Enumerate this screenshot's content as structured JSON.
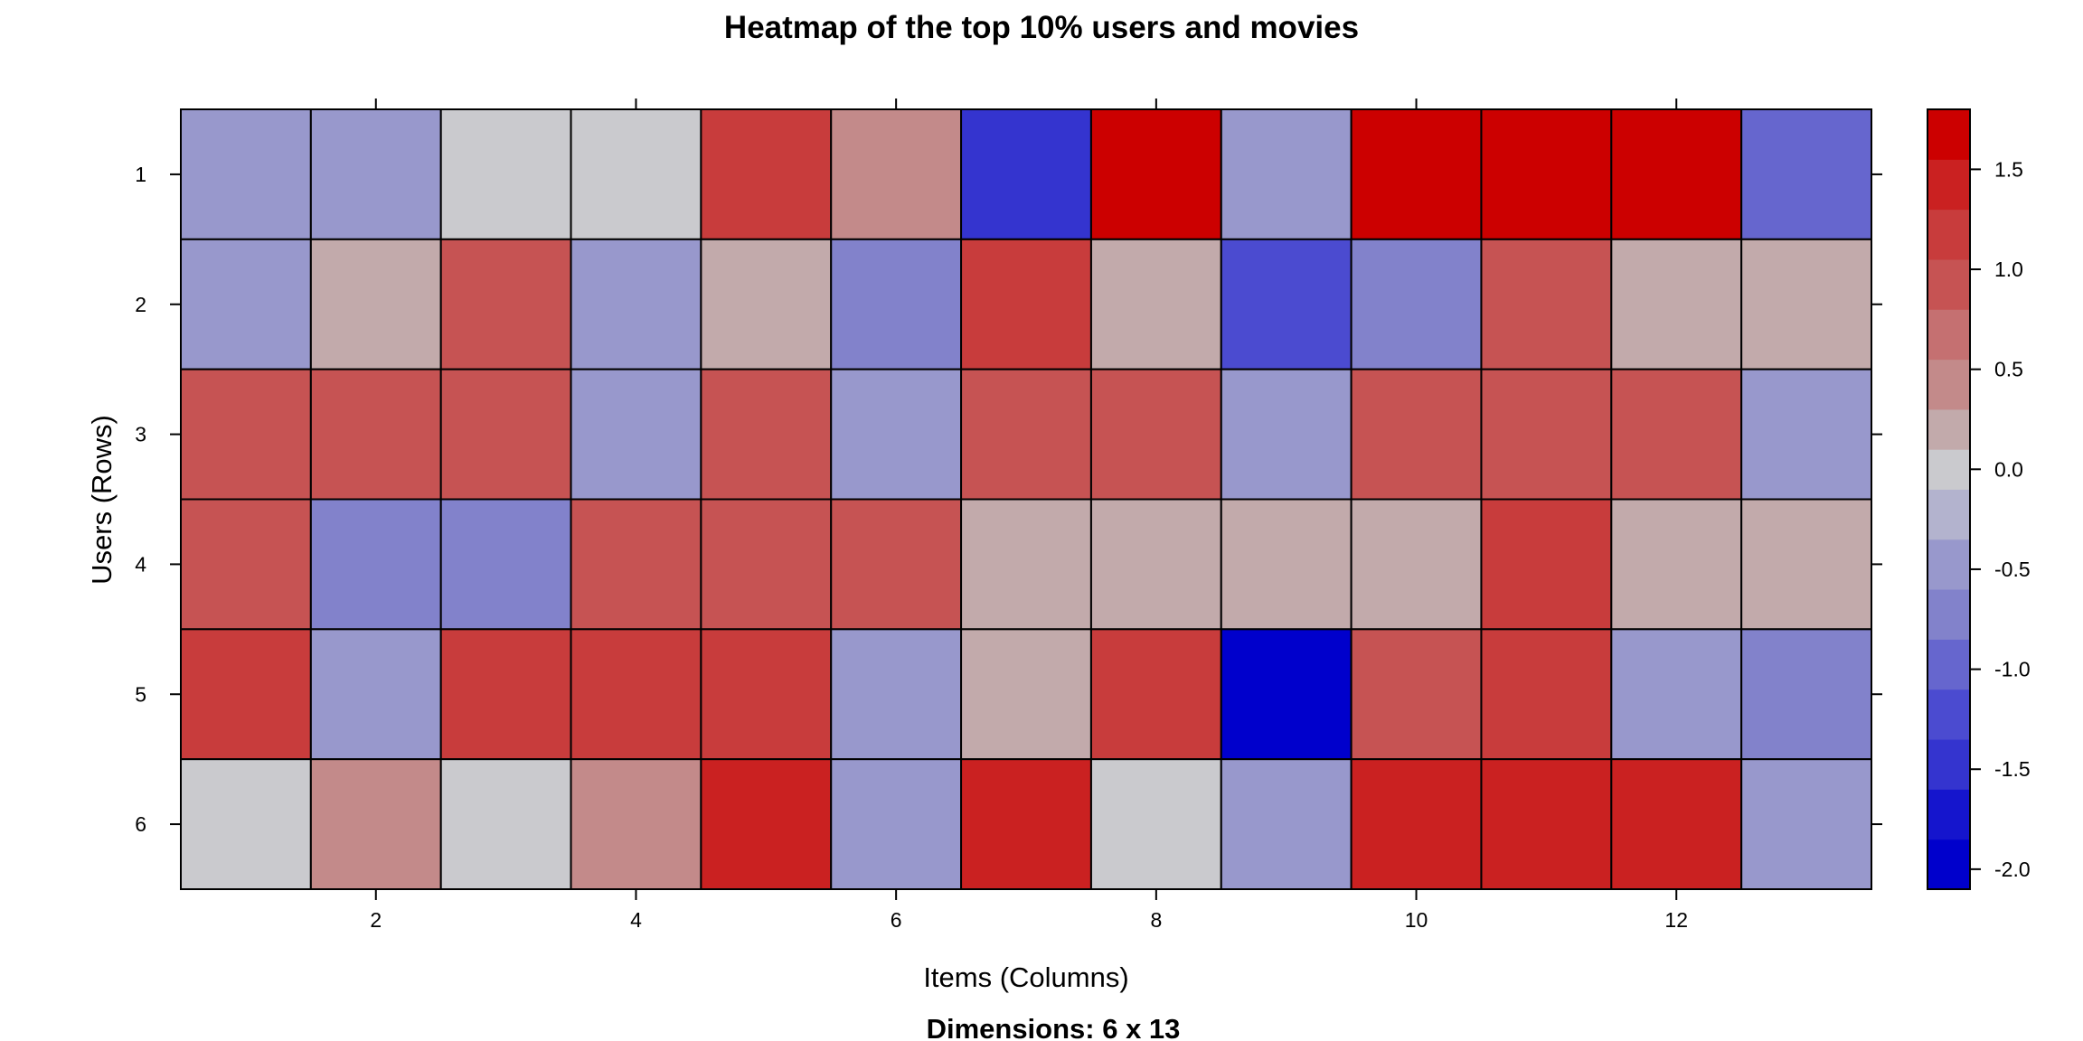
{
  "chart_data": {
    "type": "heatmap",
    "title": "Heatmap of the top 10% users and movies",
    "subtitle": "Dimensions: 6 x 13",
    "xlabel": "Items (Columns)",
    "ylabel": "Users (Rows)",
    "rows": [
      1,
      2,
      3,
      4,
      5,
      6
    ],
    "columns": [
      1,
      2,
      3,
      4,
      5,
      6,
      7,
      8,
      9,
      10,
      11,
      12,
      13
    ],
    "x_ticks": [
      "2",
      "4",
      "6",
      "8",
      "10",
      "12"
    ],
    "y_ticks": [
      "1",
      "2",
      "3",
      "4",
      "5",
      "6"
    ],
    "values": [
      [
        -0.6,
        -0.6,
        0.0,
        0.0,
        1.1,
        0.4,
        -1.6,
        1.7,
        -0.6,
        1.7,
        1.7,
        1.7,
        -1.1
      ],
      [
        -0.4,
        0.2,
        0.8,
        -0.4,
        0.2,
        -0.8,
        1.2,
        0.2,
        -1.3,
        -0.8,
        0.8,
        0.2,
        0.2
      ],
      [
        0.8,
        0.8,
        0.8,
        -0.4,
        0.8,
        -0.4,
        0.8,
        0.8,
        -0.4,
        0.8,
        0.8,
        0.8,
        -0.4
      ],
      [
        0.8,
        -0.8,
        -0.8,
        0.8,
        0.8,
        0.8,
        0.2,
        0.2,
        0.2,
        0.2,
        1.2,
        0.2,
        0.2
      ],
      [
        1.2,
        -0.4,
        1.2,
        1.2,
        1.2,
        -0.4,
        0.2,
        1.2,
        -2.0,
        0.8,
        1.2,
        -0.4,
        -0.8
      ],
      [
        0.0,
        0.4,
        0.0,
        0.4,
        1.5,
        -0.6,
        1.5,
        0.0,
        -0.6,
        1.5,
        1.5,
        1.5,
        -0.6
      ]
    ],
    "colorbar": {
      "min": -2.1,
      "max": 1.8,
      "ticks": [
        "-2.0",
        "-1.5",
        "-1.0",
        "-0.5",
        "0.0",
        "0.5",
        "1.0",
        "1.5"
      ],
      "tick_values": [
        -2.0,
        -1.5,
        -1.0,
        -0.5,
        0.0,
        0.5,
        1.0,
        1.5
      ],
      "bands": [
        {
          "from": -2.1,
          "to": -1.85,
          "color": "#0000CC"
        },
        {
          "from": -1.85,
          "to": -1.6,
          "color": "#1515CD"
        },
        {
          "from": -1.6,
          "to": -1.35,
          "color": "#3434CF"
        },
        {
          "from": -1.35,
          "to": -1.1,
          "color": "#4B4BD0"
        },
        {
          "from": -1.1,
          "to": -0.85,
          "color": "#6666CE"
        },
        {
          "from": -0.85,
          "to": -0.6,
          "color": "#8282CB"
        },
        {
          "from": -0.6,
          "to": -0.35,
          "color": "#9898CC"
        },
        {
          "from": -0.35,
          "to": -0.1,
          "color": "#B3B3CE"
        },
        {
          "from": -0.1,
          "to": 0.1,
          "color": "#CACACE"
        },
        {
          "from": 0.1,
          "to": 0.3,
          "color": "#C2AAAB"
        },
        {
          "from": 0.3,
          "to": 0.55,
          "color": "#C38A8A"
        },
        {
          "from": 0.55,
          "to": 0.8,
          "color": "#C57071"
        },
        {
          "from": 0.8,
          "to": 1.05,
          "color": "#C65353"
        },
        {
          "from": 1.05,
          "to": 1.3,
          "color": "#C83C3C"
        },
        {
          "from": 1.3,
          "to": 1.55,
          "color": "#CA2121"
        },
        {
          "from": 1.55,
          "to": 1.8,
          "color": "#CC0000"
        }
      ]
    },
    "grid": false,
    "legend_position": "right"
  }
}
